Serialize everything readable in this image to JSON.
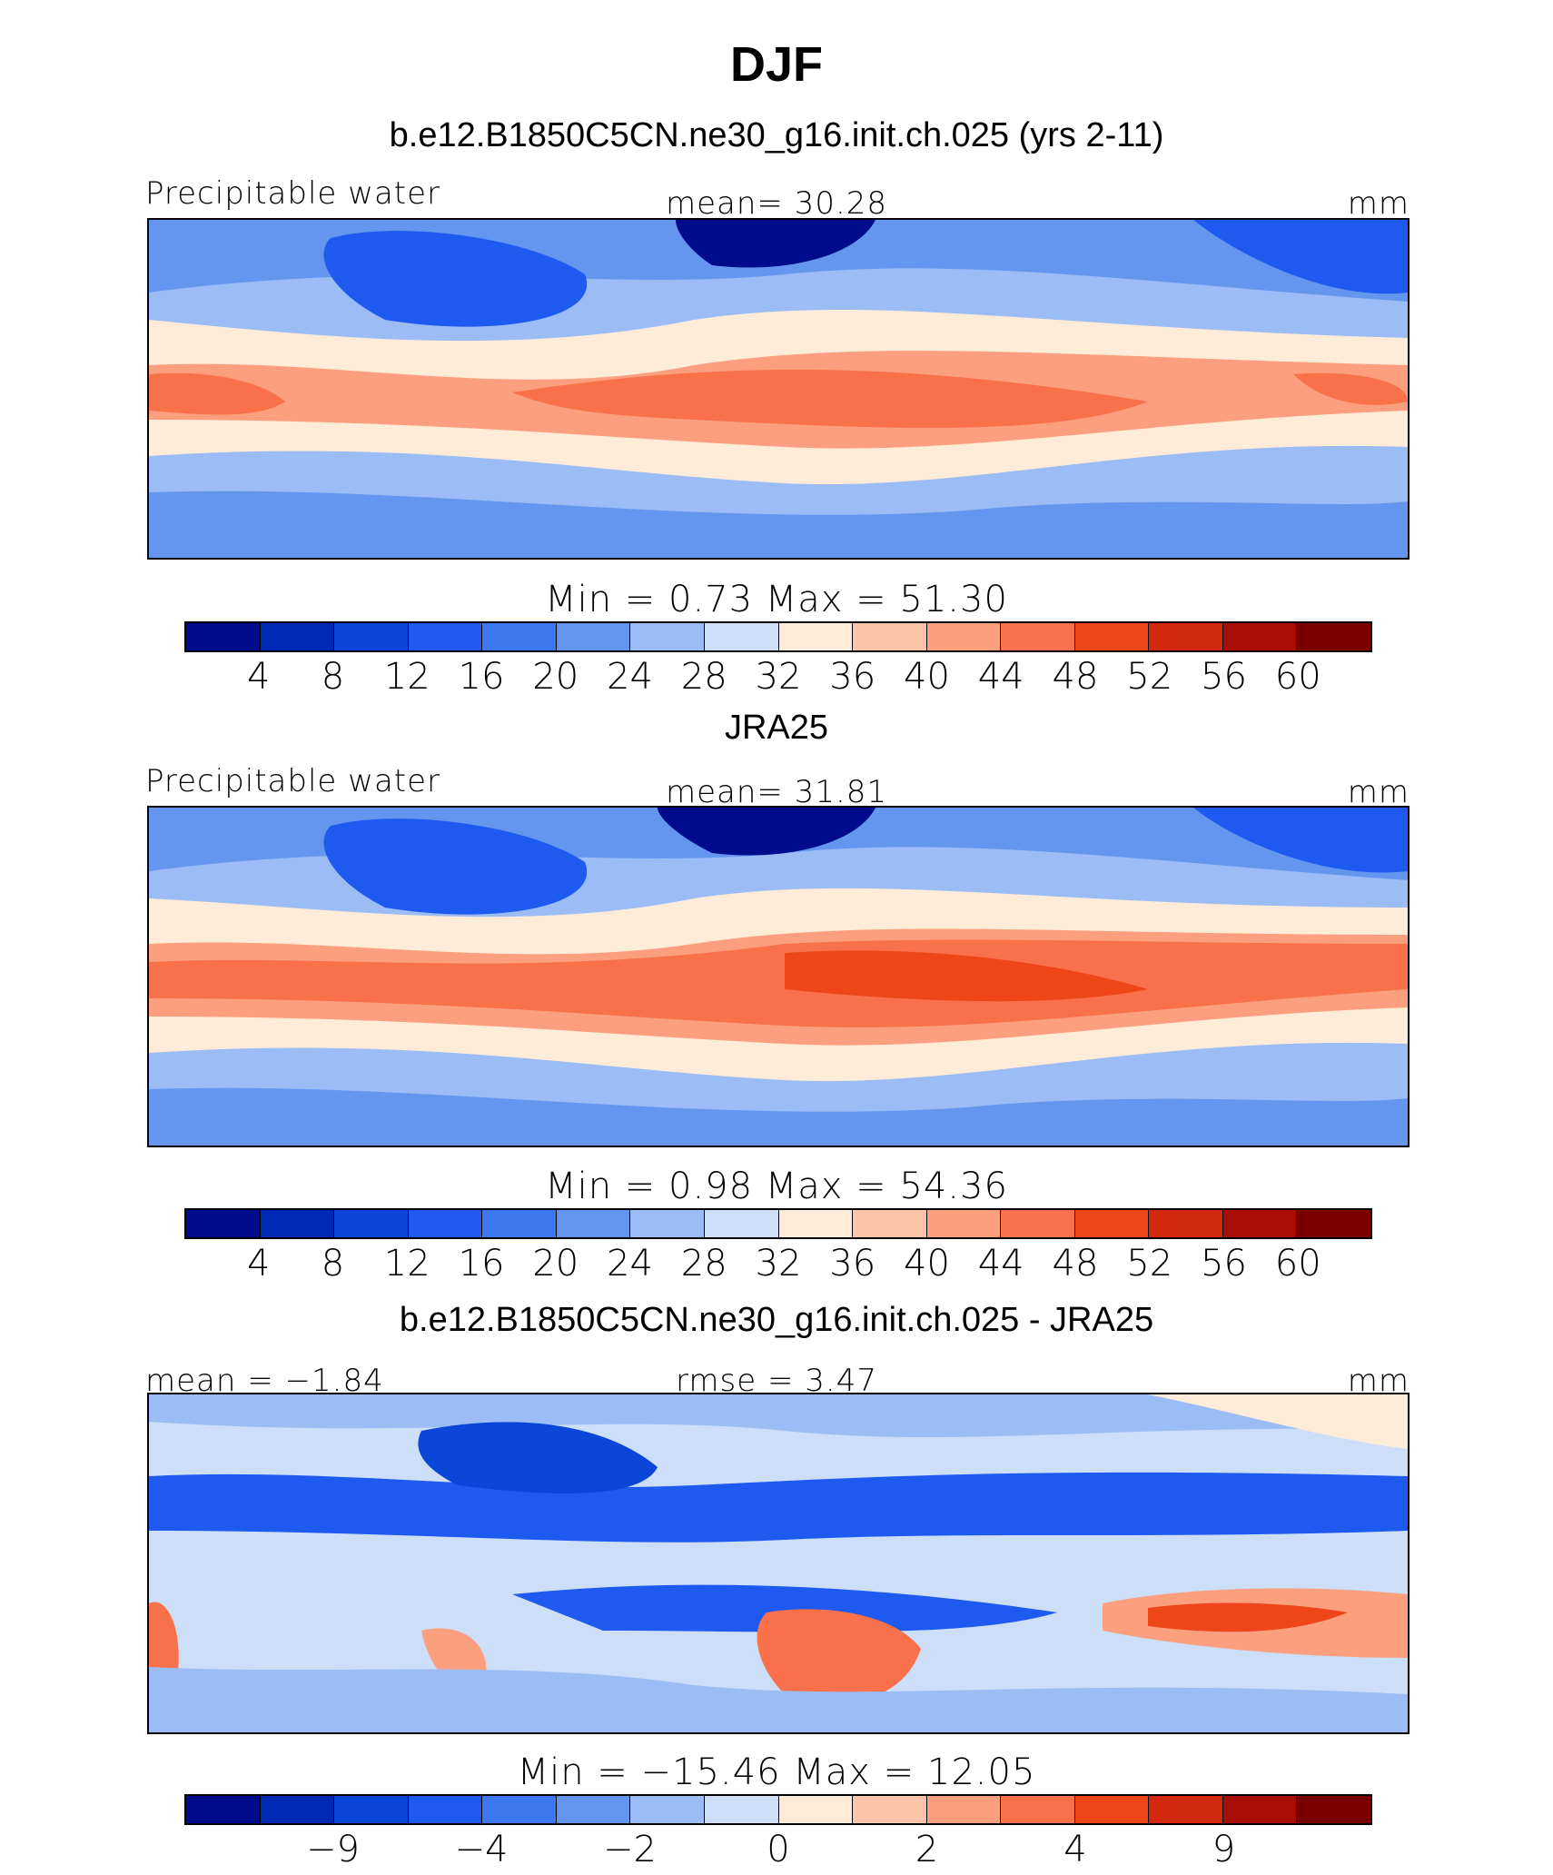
{
  "page": {
    "title": "DJF"
  },
  "chart_data": [
    {
      "type": "heatmap",
      "title": "b.e12.B1850C5CN.ne30_g16.init.ch.025 (yrs 2-11)",
      "left_label": "Precipitable water",
      "center_label": "mean=   30.28",
      "right_label": "mm",
      "minmax_label": "Min =     0.73  Max =    51.30",
      "min": 0.73,
      "max": 51.3,
      "mean": 30.28,
      "colorbar_ticks": [
        "4",
        "8",
        "12",
        "16",
        "20",
        "24",
        "28",
        "32",
        "36",
        "40",
        "44",
        "48",
        "52",
        "56",
        "60"
      ],
      "colors": [
        "#000C8C",
        "#0029B5",
        "#0A47D9",
        "#1E5AF0",
        "#3C78F0",
        "#6496F0",
        "#9BBCF5",
        "#CCDEF8",
        "#FFECD8",
        "#FDC5A8",
        "#FB9F7E",
        "#F8714A",
        "#EE4519",
        "#D2280C",
        "#A80E05",
        "#7A0000"
      ]
    },
    {
      "type": "heatmap",
      "title": "JRA25",
      "left_label": "Precipitable water",
      "center_label": "mean=   31.81",
      "right_label": "mm",
      "minmax_label": "Min =     0.98  Max =    54.36",
      "min": 0.98,
      "max": 54.36,
      "mean": 31.81,
      "colorbar_ticks": [
        "4",
        "8",
        "12",
        "16",
        "20",
        "24",
        "28",
        "32",
        "36",
        "40",
        "44",
        "48",
        "52",
        "56",
        "60"
      ],
      "colors": [
        "#000C8C",
        "#0029B5",
        "#0A47D9",
        "#1E5AF0",
        "#3C78F0",
        "#6496F0",
        "#9BBCF5",
        "#CCDEF8",
        "#FFECD8",
        "#FDC5A8",
        "#FB9F7E",
        "#F8714A",
        "#EE4519",
        "#D2280C",
        "#A80E05",
        "#7A0000"
      ]
    },
    {
      "type": "heatmap",
      "title": "b.e12.B1850C5CN.ne30_g16.init.ch.025 - JRA25",
      "left_label": "mean =   −1.84",
      "center_label": "rmse =      3.47",
      "right_label": "mm",
      "minmax_label": "Min = −15.46  Max =    12.05",
      "min": -15.46,
      "max": 12.05,
      "mean": -1.84,
      "rmse": 3.47,
      "colorbar_ticks": [
        "−9",
        "−4",
        "−2",
        "0",
        "2",
        "4",
        "9"
      ],
      "colors": [
        "#000C8C",
        "#0029B5",
        "#0A47D9",
        "#1E5AF0",
        "#3C78F0",
        "#6496F0",
        "#9BBCF5",
        "#CCDEF8",
        "#FFECD8",
        "#FDC5A8",
        "#FB9F7E",
        "#F8714A",
        "#EE4519",
        "#D2280C",
        "#A80E05",
        "#7A0000"
      ]
    }
  ]
}
